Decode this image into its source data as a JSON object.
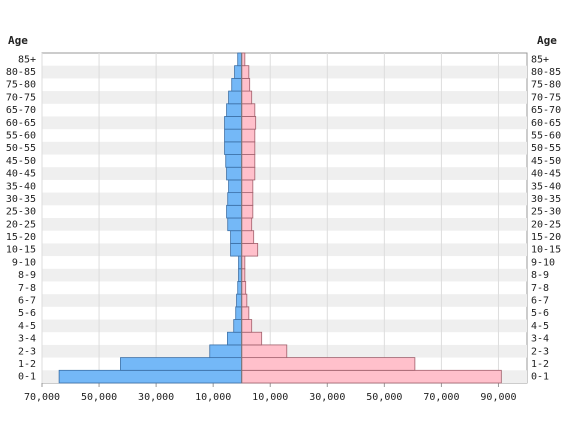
{
  "chart_data": {
    "type": "pyramid",
    "y_label": "Age",
    "categories": [
      "0-1",
      "1-2",
      "2-3",
      "3-4",
      "4-5",
      "5-6",
      "6-7",
      "7-8",
      "8-9",
      "9-10",
      "10-15",
      "15-20",
      "20-25",
      "25-30",
      "30-35",
      "35-40",
      "40-45",
      "45-50",
      "50-55",
      "55-60",
      "60-65",
      "65-70",
      "70-75",
      "75-80",
      "80-85",
      "85+"
    ],
    "series": [
      {
        "color": "#74b8f7",
        "values": [
          -64000,
          -42500,
          -11200,
          -5000,
          -2800,
          -2100,
          -1800,
          -1400,
          -1100,
          -1100,
          -3900,
          -3900,
          -4900,
          -5300,
          -4900,
          -4600,
          -5300,
          -5600,
          -6000,
          -6000,
          -6000,
          -5300,
          -4600,
          -3500,
          -2500,
          -1400
        ]
      },
      {
        "color": "#ffc0cb",
        "values": [
          91000,
          60700,
          15800,
          7000,
          3500,
          2500,
          1800,
          1400,
          1100,
          1100,
          5600,
          4200,
          3500,
          3900,
          3900,
          3900,
          4600,
          4600,
          4600,
          4600,
          4900,
          4600,
          3500,
          2800,
          2500,
          1100
        ]
      }
    ],
    "xlim": [
      -70000,
      100000
    ],
    "xticks": [
      {
        "value": -70000,
        "label": "70,000"
      },
      {
        "value": -50000,
        "label": "50,000"
      },
      {
        "value": -30000,
        "label": "30,000"
      },
      {
        "value": -10000,
        "label": "10,000"
      },
      {
        "value": 10000,
        "label": "10,000"
      },
      {
        "value": 30000,
        "label": "30,000"
      },
      {
        "value": 50000,
        "label": "50,000"
      },
      {
        "value": 70000,
        "label": "70,000"
      },
      {
        "value": 90000,
        "label": "90,000"
      }
    ],
    "grid": true
  }
}
